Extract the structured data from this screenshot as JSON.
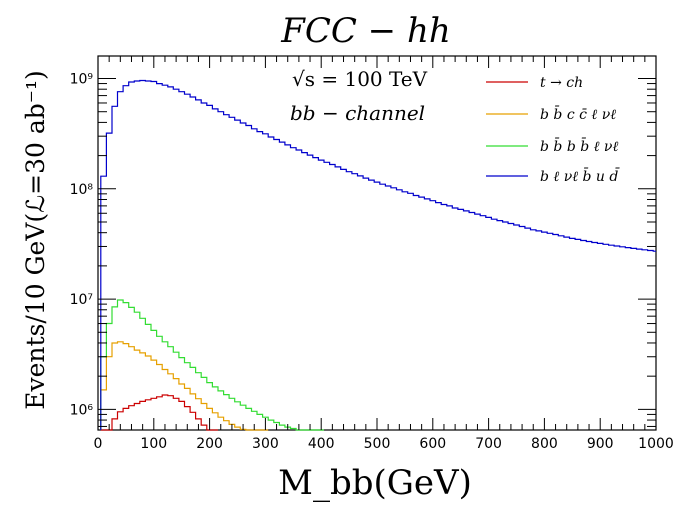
{
  "chart_data": {
    "type": "line",
    "title": "FCC − hh",
    "annotations": [
      "√s = 100 TeV",
      "bb − channel"
    ],
    "xlabel": "M_bb(GeV)",
    "ylabel": "Events/10 GeV(ℒ=30 ab⁻¹)",
    "xlim": [
      0,
      1000
    ],
    "ylim": [
      650000,
      1600000000
    ],
    "yscale": "log",
    "bin_width": 10,
    "x_ticks": [
      "0",
      "100",
      "200",
      "300",
      "400",
      "500",
      "600",
      "700",
      "800",
      "900",
      "1000"
    ],
    "y_ticks": [
      {
        "label": "10⁶",
        "value": 1000000
      },
      {
        "label": "10⁷",
        "value": 10000000
      },
      {
        "label": "10⁸",
        "value": 100000000
      },
      {
        "label": "10⁹",
        "value": 1000000000
      }
    ],
    "legend_position": "top-right",
    "series": [
      {
        "name": "t → ch",
        "color": "#cc0000",
        "x": [
          10,
          20,
          30,
          40,
          50,
          60,
          70,
          80,
          90,
          100,
          110,
          120,
          130,
          140,
          150,
          160,
          170,
          180,
          190,
          200,
          210
        ],
        "values": [
          450000,
          620000,
          820000,
          950000,
          1020000,
          1080000,
          1130000,
          1180000,
          1220000,
          1260000,
          1300000,
          1350000,
          1330000,
          1260000,
          1180000,
          1060000,
          940000,
          820000,
          720000,
          640000,
          560000
        ]
      },
      {
        "name": "b b̄ c c̄ ℓ νℓ",
        "color": "#e6a000",
        "x": [
          10,
          20,
          30,
          40,
          50,
          60,
          70,
          80,
          90,
          100,
          110,
          120,
          130,
          140,
          150,
          160,
          170,
          180,
          190,
          200,
          210,
          220,
          230,
          240,
          250,
          260,
          270,
          280,
          290,
          300
        ],
        "values": [
          1500000,
          3000000,
          4000000,
          4100000,
          3950000,
          3700000,
          3450000,
          3250000,
          3050000,
          2800000,
          2550000,
          2300000,
          2100000,
          1900000,
          1700000,
          1550000,
          1380000,
          1250000,
          1130000,
          1020000,
          930000,
          850000,
          790000,
          730000,
          690000,
          660000,
          620000,
          590000,
          560000,
          530000
        ]
      },
      {
        "name": "b b̄ b b̄ ℓ νℓ",
        "color": "#33dd33",
        "x": [
          10,
          20,
          30,
          40,
          50,
          60,
          70,
          80,
          90,
          100,
          110,
          120,
          130,
          140,
          150,
          160,
          170,
          180,
          190,
          200,
          210,
          220,
          230,
          240,
          250,
          260,
          270,
          280,
          290,
          300,
          310,
          320,
          330,
          340,
          350,
          360,
          370,
          380,
          390,
          400
        ],
        "values": [
          3000000,
          6000000,
          8500000,
          9800000,
          9300000,
          8400000,
          7600000,
          6700000,
          5900000,
          5200000,
          4600000,
          4100000,
          3700000,
          3300000,
          2950000,
          2650000,
          2400000,
          2150000,
          1950000,
          1750000,
          1600000,
          1470000,
          1360000,
          1260000,
          1170000,
          1090000,
          1020000,
          960000,
          900000,
          850000,
          800000,
          760000,
          720000,
          690000,
          670000,
          650000,
          630000,
          610000,
          590000,
          570000
        ]
      },
      {
        "name": "b ℓ νℓ b̄ u d̄",
        "color": "#0000cc",
        "x": [
          10,
          20,
          30,
          40,
          50,
          60,
          70,
          80,
          90,
          100,
          110,
          120,
          130,
          140,
          150,
          160,
          170,
          180,
          190,
          200,
          210,
          220,
          230,
          240,
          250,
          260,
          270,
          280,
          290,
          300,
          310,
          320,
          330,
          340,
          350,
          360,
          370,
          380,
          390,
          400,
          410,
          420,
          430,
          440,
          450,
          460,
          470,
          480,
          490,
          500,
          510,
          520,
          530,
          540,
          550,
          560,
          570,
          580,
          590,
          600,
          610,
          620,
          630,
          640,
          650,
          660,
          670,
          680,
          690,
          700,
          710,
          720,
          730,
          740,
          750,
          760,
          770,
          780,
          790,
          800,
          810,
          820,
          830,
          840,
          850,
          860,
          870,
          880,
          890,
          900,
          910,
          920,
          930,
          940,
          950,
          960,
          970,
          980,
          990,
          1000
        ],
        "values": [
          130000000,
          320000000,
          560000000,
          760000000,
          860000000,
          930000000,
          950000000,
          960000000,
          950000000,
          940000000,
          900000000,
          870000000,
          840000000,
          800000000,
          760000000,
          720000000,
          680000000,
          640000000,
          600000000,
          570000000,
          530000000,
          500000000,
          470000000,
          445000000,
          420000000,
          395000000,
          375000000,
          350000000,
          330000000,
          315000000,
          295000000,
          280000000,
          265000000,
          250000000,
          236000000,
          225000000,
          213000000,
          202000000,
          192000000,
          182000000,
          174000000,
          166000000,
          158000000,
          150000000,
          143000000,
          137000000,
          131000000,
          125000000,
          120000000,
          115000000,
          110000000,
          106000000,
          102000000,
          98000000,
          94000000,
          91000000,
          87000000,
          84000000,
          81000000,
          78000000,
          75000000,
          72000000,
          70000000,
          67000000,
          65000000,
          63000000,
          61000000,
          59000000,
          57000000,
          55000000,
          53000000,
          51500000,
          50000000,
          48500000,
          47000000,
          45500000,
          44000000,
          42500000,
          41500000,
          40500000,
          39500000,
          38500000,
          37500000,
          36500000,
          35500000,
          34800000,
          34000000,
          33300000,
          32600000,
          32000000,
          31400000,
          30800000,
          30300000,
          29800000,
          29300000,
          28800000,
          28400000,
          28000000,
          27600000,
          27200000
        ]
      }
    ]
  }
}
